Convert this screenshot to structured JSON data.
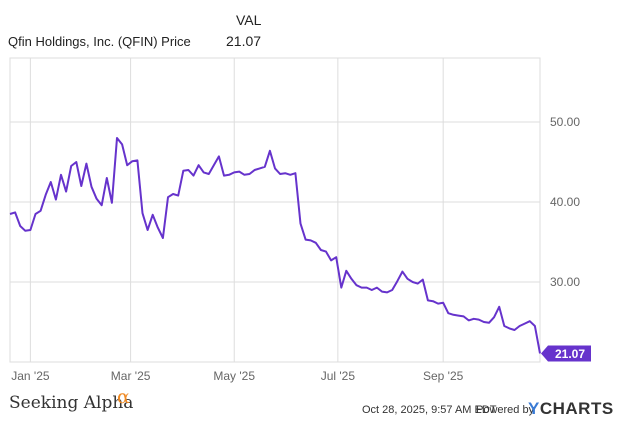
{
  "header": {
    "val_label": "VAL",
    "series_name": "Qfin Holdings, Inc. (QFIN) Price",
    "series_value": "21.07"
  },
  "footer": {
    "brand": "Seeking Alpha",
    "brand_symbol": "α",
    "timestamp": "Oct 28, 2025, 9:57 AM EDT",
    "powered_by": "Powered by",
    "ycharts_y": "Y",
    "ycharts_rest": "CHARTS"
  },
  "colors": {
    "line": "#6633cc",
    "grid": "#dddddd",
    "axis_text": "#666666",
    "badge_bg": "#6633cc",
    "badge_text": "#ffffff"
  },
  "chart_data": {
    "type": "line",
    "title": "",
    "xlabel": "",
    "ylabel": "",
    "grid": true,
    "ylim": [
      20,
      58
    ],
    "y_ticks": [
      30,
      40,
      50
    ],
    "y_tick_labels": [
      "30.00",
      "40.00",
      "50.00"
    ],
    "x_ticks": [
      "2025-01-01",
      "2025-03-01",
      "2025-05-01",
      "2025-07-01",
      "2025-09-01"
    ],
    "x_tick_labels": [
      "Jan '25",
      "Mar '25",
      "May '25",
      "Jul '25",
      "Sep '25"
    ],
    "last_value_label": "21.07",
    "series": [
      {
        "name": "Qfin Holdings, Inc. (QFIN) Price",
        "x": [
          "2024-12-20",
          "2024-12-23",
          "2024-12-26",
          "2024-12-29",
          "2025-01-01",
          "2025-01-04",
          "2025-01-07",
          "2025-01-10",
          "2025-01-13",
          "2025-01-16",
          "2025-01-19",
          "2025-01-22",
          "2025-01-25",
          "2025-01-28",
          "2025-01-31",
          "2025-02-03",
          "2025-02-06",
          "2025-02-09",
          "2025-02-12",
          "2025-02-15",
          "2025-02-18",
          "2025-02-21",
          "2025-02-24",
          "2025-02-27",
          "2025-03-02",
          "2025-03-05",
          "2025-03-08",
          "2025-03-11",
          "2025-03-14",
          "2025-03-17",
          "2025-03-20",
          "2025-03-23",
          "2025-03-26",
          "2025-03-29",
          "2025-04-01",
          "2025-04-04",
          "2025-04-07",
          "2025-04-10",
          "2025-04-13",
          "2025-04-16",
          "2025-04-19",
          "2025-04-22",
          "2025-04-25",
          "2025-04-28",
          "2025-05-01",
          "2025-05-04",
          "2025-05-07",
          "2025-05-10",
          "2025-05-13",
          "2025-05-16",
          "2025-05-19",
          "2025-05-22",
          "2025-05-25",
          "2025-05-28",
          "2025-05-31",
          "2025-06-03",
          "2025-06-06",
          "2025-06-09",
          "2025-06-12",
          "2025-06-15",
          "2025-06-18",
          "2025-06-21",
          "2025-06-24",
          "2025-06-27",
          "2025-06-30",
          "2025-07-03",
          "2025-07-06",
          "2025-07-09",
          "2025-07-12",
          "2025-07-15",
          "2025-07-18",
          "2025-07-21",
          "2025-07-24",
          "2025-07-27",
          "2025-07-30",
          "2025-08-02",
          "2025-08-05",
          "2025-08-08",
          "2025-08-11",
          "2025-08-14",
          "2025-08-17",
          "2025-08-20",
          "2025-08-23",
          "2025-08-26",
          "2025-08-29",
          "2025-09-01",
          "2025-09-04",
          "2025-09-07",
          "2025-09-10",
          "2025-09-13",
          "2025-09-16",
          "2025-09-19",
          "2025-09-22",
          "2025-09-25",
          "2025-09-28",
          "2025-10-01",
          "2025-10-04",
          "2025-10-07",
          "2025-10-10",
          "2025-10-13",
          "2025-10-16",
          "2025-10-19",
          "2025-10-22",
          "2025-10-25",
          "2025-10-28"
        ],
        "values": [
          38.5,
          38.7,
          37.0,
          36.4,
          36.5,
          38.5,
          38.9,
          40.9,
          42.5,
          40.3,
          43.4,
          41.3,
          44.5,
          45.0,
          42.0,
          44.8,
          41.9,
          40.4,
          39.6,
          43.0,
          39.9,
          48.0,
          47.2,
          44.6,
          45.1,
          45.2,
          38.6,
          36.5,
          38.4,
          36.8,
          35.5,
          40.6,
          41.0,
          40.8,
          43.9,
          44.0,
          43.3,
          44.6,
          43.7,
          43.5,
          44.6,
          45.7,
          43.3,
          43.4,
          43.7,
          43.8,
          43.4,
          43.5,
          44.0,
          44.2,
          44.4,
          46.4,
          44.2,
          43.5,
          43.6,
          43.4,
          43.6,
          37.3,
          35.3,
          35.2,
          34.9,
          34.0,
          33.8,
          32.7,
          33.1,
          29.3,
          31.4,
          30.4,
          29.6,
          29.3,
          29.3,
          29.0,
          29.3,
          28.8,
          28.7,
          29.0,
          30.1,
          31.3,
          30.4,
          30.0,
          29.8,
          30.3,
          27.7,
          27.6,
          27.3,
          27.4,
          26.1,
          25.9,
          25.8,
          25.7,
          25.2,
          25.4,
          25.3,
          25.0,
          24.9,
          25.6,
          26.9,
          24.5,
          24.2,
          24.0,
          24.5,
          24.8,
          25.1,
          24.5,
          21.07
        ]
      }
    ]
  }
}
